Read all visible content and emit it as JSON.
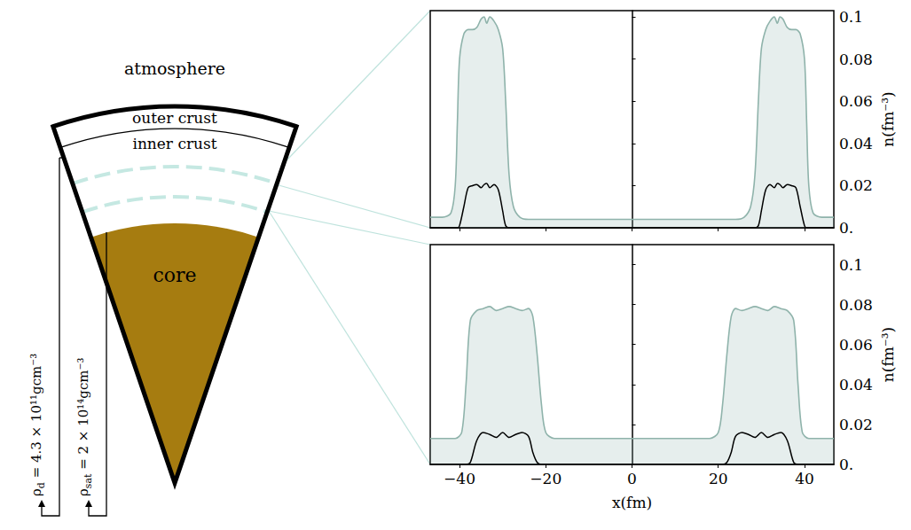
{
  "diagram": {
    "atmosphere": "atmosphere",
    "outer_crust": "outer crust",
    "inner_crust": "inner crust",
    "core": "core",
    "density_markers": [
      {
        "symbol": "ρ",
        "subscript": "d",
        "text": " = 4.3 × 10¹¹gcm⁻³"
      },
      {
        "symbol": "ρ",
        "subscript": "sat",
        "text": " = 2 × 10¹⁴gcm⁻³"
      }
    ]
  },
  "chart_data": [
    {
      "type": "line",
      "x": [
        -46.8,
        -44,
        -42,
        -41,
        -40.5,
        -40,
        -39,
        -38,
        -37,
        -36,
        -35,
        -34.3,
        -33.7,
        -33,
        -32,
        -31,
        -30,
        -29.3,
        -28.5,
        -27.5,
        -26,
        -24,
        -15,
        0,
        15,
        24,
        26,
        27.5,
        28.5,
        29.3,
        30,
        31,
        32,
        33,
        33.7,
        34.3,
        35,
        36,
        37,
        38,
        39,
        40,
        40.5,
        41,
        42,
        44,
        46.8
      ],
      "series": [
        {
          "type": "area",
          "color": "#8fb3ab",
          "values": [
            0.005,
            0.005,
            0.007,
            0.02,
            0.05,
            0.08,
            0.092,
            0.094,
            0.094,
            0.095,
            0.099,
            0.1,
            0.097,
            0.1,
            0.098,
            0.094,
            0.085,
            0.06,
            0.025,
            0.01,
            0.005,
            0.004,
            0.004,
            0.004,
            0.004,
            0.004,
            0.005,
            0.01,
            0.025,
            0.06,
            0.085,
            0.094,
            0.098,
            0.1,
            0.097,
            0.1,
            0.099,
            0.095,
            0.094,
            0.094,
            0.092,
            0.08,
            0.05,
            0.02,
            0.007,
            0.005,
            0.005
          ]
        },
        {
          "type": "line",
          "color": "#000000",
          "values": [
            0,
            0,
            0,
            0,
            0,
            0.001,
            0.01,
            0.019,
            0.02,
            0.0205,
            0.019,
            0.0205,
            0.021,
            0.019,
            0.0205,
            0.018,
            0.008,
            0.001,
            0,
            0,
            0,
            0,
            0,
            0,
            0,
            0,
            0,
            0,
            0,
            0.001,
            0.008,
            0.018,
            0.0205,
            0.019,
            0.021,
            0.0205,
            0.019,
            0.0205,
            0.02,
            0.019,
            0.01,
            0.001,
            0,
            0,
            0,
            0,
            0
          ]
        }
      ],
      "xlim": [
        -46.8,
        46.8
      ],
      "xticks": [
        {
          "value": -40,
          "label": "−40"
        },
        {
          "value": -20,
          "label": "−20"
        },
        0,
        20,
        40
      ],
      "ylim": [
        0,
        0.103
      ],
      "yticks": [
        {
          "value": 0,
          "label": "0."
        },
        0.02,
        0.04,
        0.06,
        0.08,
        0.1
      ],
      "y_label": "n(fm⁻³)",
      "tick_labels": "y",
      "grid": false
    },
    {
      "type": "line",
      "x": [
        -46.8,
        -44,
        -41,
        -39.5,
        -38.5,
        -37.5,
        -36,
        -34.5,
        -33,
        -31.5,
        -30,
        -28.5,
        -27,
        -25.5,
        -24,
        -23,
        -22,
        -21,
        -20,
        -18,
        -10,
        0,
        10,
        18,
        20,
        21,
        22,
        23,
        24,
        25.5,
        27,
        28.5,
        30,
        31.5,
        33,
        34.5,
        36,
        37.5,
        38.5,
        39.5,
        41,
        44,
        46.8
      ],
      "series": [
        {
          "type": "area",
          "color": "#8fb3ab",
          "values": [
            0.013,
            0.013,
            0.013,
            0.016,
            0.04,
            0.072,
            0.077,
            0.078,
            0.079,
            0.077,
            0.078,
            0.079,
            0.078,
            0.077,
            0.078,
            0.074,
            0.055,
            0.03,
            0.016,
            0.013,
            0.013,
            0.013,
            0.013,
            0.013,
            0.016,
            0.03,
            0.055,
            0.074,
            0.078,
            0.077,
            0.078,
            0.079,
            0.078,
            0.077,
            0.079,
            0.078,
            0.077,
            0.072,
            0.04,
            0.016,
            0.013,
            0.013,
            0.013
          ]
        },
        {
          "type": "line",
          "color": "#000000",
          "values": [
            0,
            0,
            0,
            0,
            0,
            0.001,
            0.012,
            0.016,
            0.015,
            0.0135,
            0.016,
            0.0135,
            0.015,
            0.016,
            0.014,
            0.006,
            0.001,
            0,
            0,
            0,
            0,
            0,
            0,
            0,
            0,
            0,
            0.001,
            0.006,
            0.014,
            0.016,
            0.015,
            0.0135,
            0.016,
            0.0135,
            0.015,
            0.016,
            0.012,
            0.001,
            0,
            0,
            0,
            0,
            0
          ]
        }
      ],
      "xlim": [
        -46.8,
        46.8
      ],
      "xticks": [
        {
          "value": -40,
          "label": "−40"
        },
        {
          "value": -20,
          "label": "−20"
        },
        0,
        20,
        40
      ],
      "ylim": [
        0,
        0.11
      ],
      "yticks": [
        {
          "value": 0,
          "label": "0."
        },
        0.02,
        0.04,
        0.06,
        0.08,
        0.1
      ],
      "x_label": "x(fm)",
      "y_label": "n(fm⁻³)",
      "grid": false
    }
  ]
}
